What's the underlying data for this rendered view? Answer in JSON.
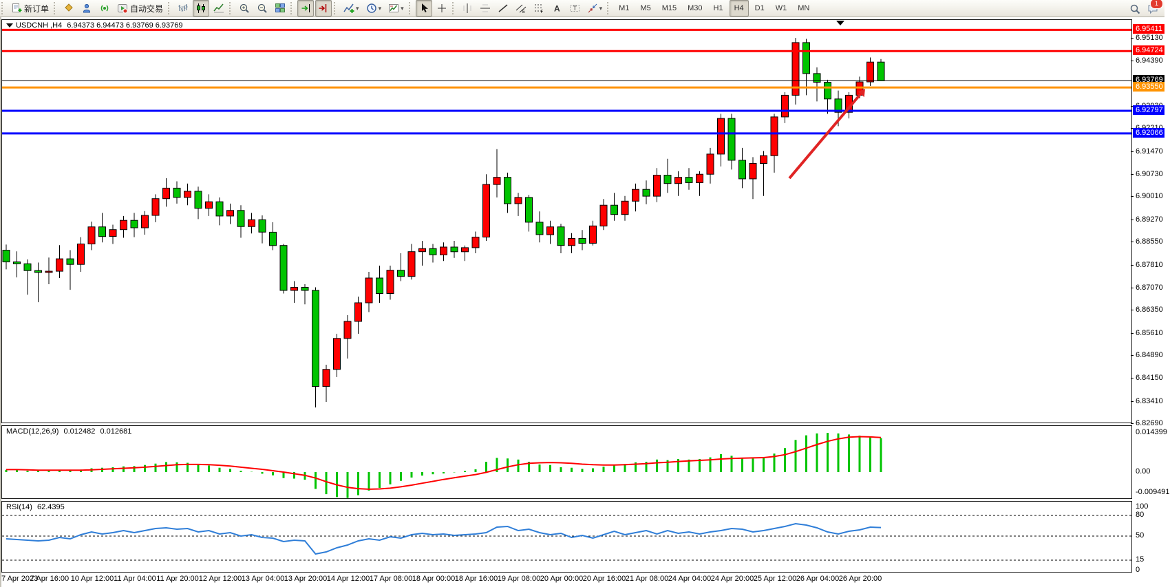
{
  "toolbar": {
    "groups": [
      [
        {
          "name": "new-order-button",
          "icon": "doc-plus",
          "label": "新订单"
        }
      ],
      [
        {
          "name": "market-watch-button",
          "icon": "gold"
        },
        {
          "name": "profile-button",
          "icon": "person"
        },
        {
          "name": "signals-button",
          "icon": "signal"
        },
        {
          "name": "auto-trading-button",
          "icon": "autotrade",
          "label": "自动交易"
        }
      ],
      [
        {
          "name": "bar-chart-button",
          "icon": "bars"
        },
        {
          "name": "candlestick-button",
          "icon": "candles",
          "active": true
        },
        {
          "name": "line-chart-button",
          "icon": "linechart"
        }
      ],
      [
        {
          "name": "zoom-in-button",
          "icon": "zoom-in"
        },
        {
          "name": "zoom-out-button",
          "icon": "zoom-out"
        },
        {
          "name": "tile-windows-button",
          "icon": "tile"
        }
      ],
      [
        {
          "name": "auto-scroll-button",
          "icon": "autoscroll",
          "active": true
        },
        {
          "name": "chart-shift-button",
          "icon": "chartshift",
          "active": true
        }
      ],
      [
        {
          "name": "indicators-button",
          "icon": "indicator",
          "dd": true
        },
        {
          "name": "periods-button",
          "icon": "clock",
          "dd": true
        },
        {
          "name": "templates-button",
          "icon": "template",
          "dd": true
        }
      ],
      [
        {
          "name": "cursor-button",
          "icon": "cursor",
          "active": true
        },
        {
          "name": "crosshair-button",
          "icon": "crosshair"
        }
      ],
      [
        {
          "name": "vertical-line-button",
          "icon": "vline"
        },
        {
          "name": "horizontal-line-button",
          "icon": "hline"
        },
        {
          "name": "trendline-button",
          "icon": "trend"
        },
        {
          "name": "channel-button",
          "icon": "channel"
        },
        {
          "name": "fibonacci-button",
          "icon": "fibo"
        },
        {
          "name": "text-button",
          "icon": "textA"
        },
        {
          "name": "label-button",
          "icon": "textT"
        },
        {
          "name": "shapes-button",
          "icon": "shapes",
          "dd": true
        }
      ]
    ],
    "timeframes": [
      {
        "label": "M1"
      },
      {
        "label": "M5"
      },
      {
        "label": "M15"
      },
      {
        "label": "M30"
      },
      {
        "label": "H1"
      },
      {
        "label": "H4",
        "active": true
      },
      {
        "label": "D1"
      },
      {
        "label": "W1"
      },
      {
        "label": "MN"
      }
    ],
    "right": [
      {
        "name": "search-button",
        "icon": "search"
      },
      {
        "name": "notifications-button",
        "icon": "chat",
        "badge": "1"
      }
    ]
  },
  "chart_data": [
    {
      "type": "candlestick",
      "symbol": "USDCNH",
      "timeframe": "H4",
      "title_left": "USDCNH ,H4",
      "title_ohlc": "6.94373 6.94473 6.93769 6.93769",
      "colors": {
        "bull": "#ff0000",
        "bear": "#00c400",
        "wick": "#000000"
      },
      "ylim": [
        6.8269,
        6.95663
      ],
      "price_ticks": [
        "6.95130",
        "6.94390",
        "6.92930",
        "6.92210",
        "6.91470",
        "6.90730",
        "6.90010",
        "6.89270",
        "6.88550",
        "6.87810",
        "6.87070",
        "6.86350",
        "6.85610",
        "6.84890",
        "6.84150",
        "6.83410",
        "6.82690"
      ],
      "hlines": [
        {
          "price": 6.95411,
          "label": "6.95411",
          "color": "#ff0000",
          "width": 3
        },
        {
          "price": 6.94724,
          "label": "6.94724",
          "color": "#ff0000",
          "width": 3
        },
        {
          "price": 6.93769,
          "label": "6.93769",
          "color": "#000000",
          "width": 1
        },
        {
          "price": 6.9355,
          "label": "6.93550",
          "color": "#ff9300",
          "width": 3
        },
        {
          "price": 6.92797,
          "label": "6.92797",
          "color": "#0000ff",
          "width": 3
        },
        {
          "price": 6.92066,
          "label": "6.92066",
          "color": "#0000ff",
          "width": 3
        }
      ],
      "times": [
        "7 Apr 2023",
        "7 Apr 16:00",
        "10 Apr 12:00",
        "11 Apr 04:00",
        "11 Apr 20:00",
        "12 Apr 12:00",
        "13 Apr 04:00",
        "13 Apr 20:00",
        "14 Apr 12:00",
        "17 Apr 08:00",
        "18 Apr 00:00",
        "18 Apr 16:00",
        "19 Apr 08:00",
        "20 Apr 00:00",
        "20 Apr 16:00",
        "21 Apr 08:00",
        "24 Apr 04:00",
        "24 Apr 20:00",
        "25 Apr 12:00",
        "26 Apr 04:00",
        "26 Apr 20:00"
      ],
      "candles": [
        [
          6.883,
          6.8848,
          6.8768,
          6.8792
        ],
        [
          6.8792,
          6.8826,
          6.8742,
          6.8786
        ],
        [
          6.8786,
          6.88,
          6.8686,
          6.8764
        ],
        [
          6.8764,
          6.879,
          6.8662,
          6.8758
        ],
        [
          6.8758,
          6.8806,
          6.872,
          6.8762
        ],
        [
          6.8762,
          6.8846,
          6.874,
          6.8802
        ],
        [
          6.8802,
          6.883,
          6.8702,
          6.8784
        ],
        [
          6.8784,
          6.8872,
          6.876,
          6.885
        ],
        [
          6.885,
          6.8922,
          6.883,
          6.8905
        ],
        [
          6.8905,
          6.895,
          6.8855,
          6.8874
        ],
        [
          6.8874,
          6.8912,
          6.885,
          6.8896
        ],
        [
          6.8896,
          6.894,
          6.887,
          6.8926
        ],
        [
          6.8926,
          6.895,
          6.8872,
          6.8902
        ],
        [
          6.8902,
          6.8956,
          6.888,
          6.8942
        ],
        [
          6.8942,
          6.901,
          6.892,
          6.8996
        ],
        [
          6.8996,
          6.9062,
          6.897,
          6.903
        ],
        [
          6.903,
          6.9052,
          6.898,
          6.9
        ],
        [
          6.9,
          6.9045,
          6.8975,
          6.902
        ],
        [
          6.902,
          6.9035,
          6.893,
          6.8965
        ],
        [
          6.8965,
          6.901,
          6.894,
          6.8986
        ],
        [
          6.8986,
          6.9,
          6.891,
          6.894
        ],
        [
          6.894,
          6.898,
          6.8914,
          6.8958
        ],
        [
          6.8958,
          6.8975,
          6.887,
          6.8906
        ],
        [
          6.8906,
          6.895,
          6.8884,
          6.8928
        ],
        [
          6.8928,
          6.8942,
          6.8852,
          6.8888
        ],
        [
          6.8888,
          6.892,
          6.883,
          6.8845
        ],
        [
          6.8845,
          6.885,
          6.869,
          6.87
        ],
        [
          6.87,
          6.873,
          6.866,
          6.871
        ],
        [
          6.871,
          6.872,
          6.8655,
          6.87
        ],
        [
          6.87,
          6.871,
          6.8322,
          6.839
        ],
        [
          6.839,
          6.846,
          6.834,
          6.8445
        ],
        [
          6.8445,
          6.856,
          6.842,
          6.8545
        ],
        [
          6.8545,
          6.862,
          6.848,
          6.86
        ],
        [
          6.86,
          6.868,
          6.856,
          6.866
        ],
        [
          6.866,
          6.876,
          6.863,
          6.874
        ],
        [
          6.874,
          6.878,
          6.866,
          6.869
        ],
        [
          6.869,
          6.878,
          6.867,
          6.8765
        ],
        [
          6.8765,
          6.882,
          6.873,
          6.8745
        ],
        [
          6.8745,
          6.885,
          6.8735,
          6.8825
        ],
        [
          6.8825,
          6.886,
          6.878,
          6.8835
        ],
        [
          6.8835,
          6.885,
          6.879,
          6.8815
        ],
        [
          6.8815,
          6.8855,
          6.8795,
          6.884
        ],
        [
          6.884,
          6.886,
          6.8805,
          6.8825
        ],
        [
          6.8825,
          6.8845,
          6.8795,
          6.8838
        ],
        [
          6.8838,
          6.889,
          6.882,
          6.8872
        ],
        [
          6.8872,
          6.9075,
          6.886,
          6.9042
        ],
        [
          6.9042,
          6.9156,
          6.9,
          6.9065
        ],
        [
          6.9065,
          6.908,
          6.895,
          6.898
        ],
        [
          6.898,
          6.9015,
          6.894,
          6.9
        ],
        [
          6.9,
          6.9008,
          6.889,
          6.892
        ],
        [
          6.892,
          6.8955,
          6.8855,
          6.888
        ],
        [
          6.888,
          6.8925,
          6.885,
          6.8905
        ],
        [
          6.8905,
          6.8915,
          6.882,
          6.8845
        ],
        [
          6.8845,
          6.8885,
          6.882,
          6.8868
        ],
        [
          6.8868,
          6.8895,
          6.883,
          6.8852
        ],
        [
          6.8852,
          6.8925,
          6.8845,
          6.8908
        ],
        [
          6.8908,
          6.8995,
          6.8895,
          6.8975
        ],
        [
          6.8975,
          6.9015,
          6.8925,
          6.8945
        ],
        [
          6.8945,
          6.9005,
          6.8925,
          6.8988
        ],
        [
          6.8988,
          6.9045,
          6.8955,
          6.9026
        ],
        [
          6.9026,
          6.9055,
          6.8978,
          6.9004
        ],
        [
          6.9004,
          6.9095,
          6.8985,
          6.9072
        ],
        [
          6.9072,
          6.9125,
          6.9015,
          6.9045
        ],
        [
          6.9045,
          6.9085,
          6.9005,
          6.9065
        ],
        [
          6.9065,
          6.9095,
          6.9025,
          6.9048
        ],
        [
          6.9048,
          6.9085,
          6.9005,
          6.9075
        ],
        [
          6.9075,
          6.916,
          6.9045,
          6.914
        ],
        [
          6.914,
          6.927,
          6.91,
          6.9255
        ],
        [
          6.9255,
          6.927,
          6.909,
          6.912
        ],
        [
          6.912,
          6.916,
          6.903,
          6.906
        ],
        [
          6.906,
          6.913,
          6.8995,
          6.911
        ],
        [
          6.911,
          6.915,
          6.9005,
          6.9135
        ],
        [
          6.9135,
          6.927,
          6.908,
          6.926
        ],
        [
          6.926,
          6.934,
          6.924,
          6.933
        ],
        [
          6.933,
          6.9515,
          6.93,
          6.95
        ],
        [
          6.95,
          6.9512,
          6.933,
          6.94
        ],
        [
          6.94,
          6.942,
          6.931,
          6.9372
        ],
        [
          6.9372,
          6.938,
          6.927,
          6.9318
        ],
        [
          6.9318,
          6.9345,
          6.923,
          6.9275
        ],
        [
          6.9275,
          6.934,
          6.9255,
          6.933
        ],
        [
          6.933,
          6.939,
          6.932,
          6.9373
        ],
        [
          6.9373,
          6.9452,
          6.936,
          6.9437
        ],
        [
          6.9437,
          6.9447,
          6.9377,
          6.9377
        ]
      ],
      "annotations": [
        {
          "type": "arrow",
          "x1": 1146,
          "y1": 258,
          "x2": 1256,
          "y2": 128,
          "color": "#e02424"
        }
      ]
    },
    {
      "type": "bar",
      "label": "MACD(12,26,9)",
      "value_main": "0.012482",
      "value_signal": "0.012681",
      "axis_labels": [
        "0.014399",
        "0.00",
        "-0.009491"
      ],
      "hist_color": "#00c400",
      "signal_color": "#ff0000",
      "hist": [
        0.0008,
        0.0007,
        0.0005,
        0.0004,
        0.0004,
        0.0006,
        0.0005,
        0.0009,
        0.0014,
        0.0016,
        0.0018,
        0.0021,
        0.0022,
        0.0026,
        0.0031,
        0.0037,
        0.0036,
        0.0034,
        0.0028,
        0.0024,
        0.0016,
        0.0012,
        0.0005,
        0.0001,
        -0.0006,
        -0.0012,
        -0.0022,
        -0.0024,
        -0.0028,
        -0.0062,
        -0.0081,
        -0.0092,
        -0.009491,
        -0.0085,
        -0.0068,
        -0.0058,
        -0.0045,
        -0.0032,
        -0.002,
        -0.0013,
        -0.0008,
        -0.0005,
        -0.0001,
        0.0004,
        0.001,
        0.0038,
        0.0052,
        0.005,
        0.0046,
        0.0038,
        0.0028,
        0.0026,
        0.0018,
        0.0016,
        0.0012,
        0.0014,
        0.002,
        0.0026,
        0.003,
        0.0036,
        0.0038,
        0.0046,
        0.0044,
        0.0048,
        0.0046,
        0.0048,
        0.0054,
        0.0066,
        0.006,
        0.0052,
        0.005,
        0.0054,
        0.0068,
        0.0088,
        0.0118,
        0.0135,
        0.0142,
        0.014399,
        0.0142,
        0.0138,
        0.0134,
        0.013,
        0.012482
      ],
      "signal": [
        0.0009,
        0.0009,
        0.0008,
        0.0007,
        0.0007,
        0.0007,
        0.0007,
        0.0007,
        0.0008,
        0.001,
        0.0012,
        0.0014,
        0.0016,
        0.0018,
        0.0021,
        0.0024,
        0.0027,
        0.0028,
        0.0028,
        0.0027,
        0.0025,
        0.0022,
        0.0018,
        0.0014,
        0.001,
        0.0005,
        0.0,
        -0.0006,
        -0.0012,
        -0.0022,
        -0.0035,
        -0.0047,
        -0.0056,
        -0.0061,
        -0.0063,
        -0.0062,
        -0.0059,
        -0.0054,
        -0.0048,
        -0.0041,
        -0.0034,
        -0.0027,
        -0.0021,
        -0.0015,
        -0.0009,
        -0.0001,
        0.0009,
        0.0019,
        0.0027,
        0.0032,
        0.0034,
        0.0035,
        0.0034,
        0.0032,
        0.0029,
        0.0027,
        0.0026,
        0.0026,
        0.0027,
        0.0029,
        0.0031,
        0.0034,
        0.0036,
        0.0039,
        0.0041,
        0.0043,
        0.0045,
        0.0048,
        0.005,
        0.0051,
        0.0052,
        0.0053,
        0.0057,
        0.0064,
        0.0075,
        0.0088,
        0.0101,
        0.0113,
        0.0122,
        0.0128,
        0.013,
        0.0129,
        0.012681
      ]
    },
    {
      "type": "line",
      "label": "RSI(14)",
      "value": "62.4395",
      "line_color": "#2f7ed8",
      "levels": [
        80,
        50,
        15
      ],
      "axis_labels": [
        "100",
        "80",
        "50",
        "15",
        "0"
      ],
      "values": [
        46,
        45,
        44,
        43,
        44,
        48,
        46,
        52,
        56,
        53,
        55,
        58,
        55,
        58,
        61,
        62,
        60,
        61,
        56,
        58,
        53,
        55,
        50,
        52,
        48,
        47,
        42,
        44,
        43,
        24,
        27,
        33,
        37,
        43,
        46,
        44,
        49,
        47,
        52,
        54,
        52,
        53,
        51,
        52,
        53,
        55,
        63,
        64,
        58,
        60,
        55,
        52,
        54,
        48,
        51,
        47,
        52,
        57,
        52,
        55,
        58,
        53,
        58,
        54,
        56,
        53,
        56,
        58,
        61,
        60,
        56,
        58,
        61,
        64,
        68,
        66,
        62,
        56,
        53,
        57,
        59,
        63,
        62.44
      ]
    }
  ]
}
